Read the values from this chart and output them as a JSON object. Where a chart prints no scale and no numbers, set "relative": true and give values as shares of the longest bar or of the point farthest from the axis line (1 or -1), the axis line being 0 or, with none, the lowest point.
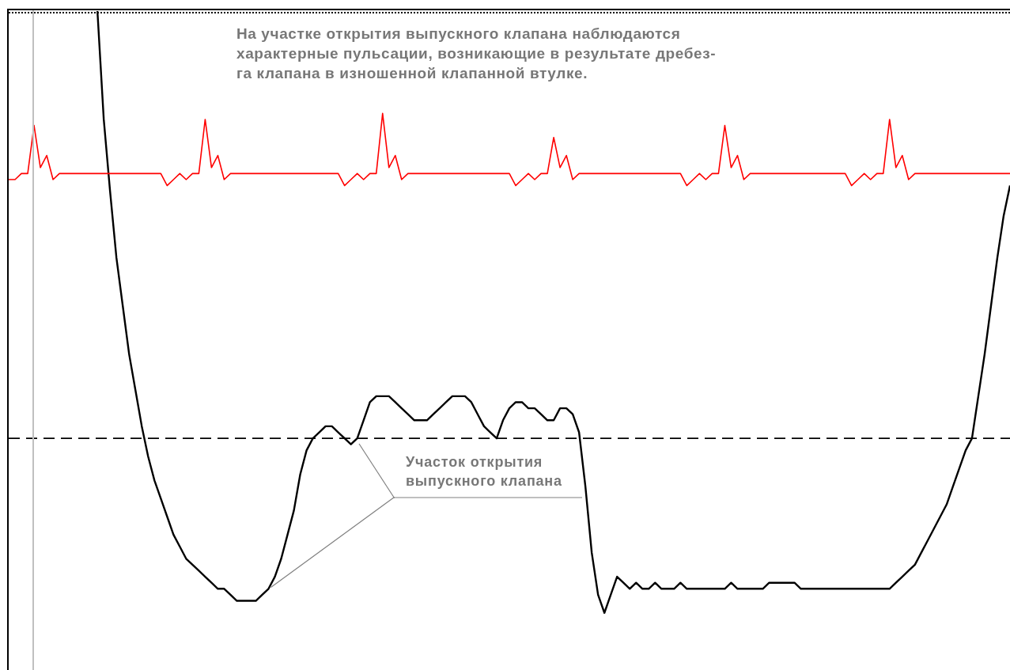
{
  "chart_data": {
    "type": "line",
    "relative": true,
    "tick_labels": false,
    "annotations": [
      "На участке открытия выпускного клапана наблюдаются\nхарактерные пульсации, возникающие в результате дребез-\nга клапана в изношенной клапанной втулке.",
      "Участок открытия\nвыпускного клапана"
    ],
    "ref_lines": [
      {
        "axis": "y",
        "value": 0.29,
        "color": "#000000",
        "line_style": "dashed"
      }
    ],
    "categories": [
      null,
      null,
      null,
      null,
      null,
      null,
      null,
      null,
      null,
      null,
      null,
      null,
      null,
      null,
      null,
      null,
      null,
      null,
      null,
      null,
      null,
      null,
      null,
      null,
      null,
      null,
      null,
      null,
      null,
      null,
      null,
      null,
      null,
      null,
      null,
      null,
      null,
      null,
      null,
      null,
      null,
      null,
      null,
      null,
      null,
      null,
      null,
      null,
      null,
      null,
      null,
      null,
      null,
      null,
      null,
      null,
      null,
      null,
      null,
      null,
      null,
      null,
      null,
      null,
      null,
      null,
      null,
      null,
      null,
      null,
      null,
      null,
      null,
      null,
      null,
      null,
      null,
      null,
      null,
      null,
      null,
      null,
      null,
      null,
      null,
      null,
      null,
      null,
      null,
      null,
      null,
      null,
      null,
      null,
      null,
      null,
      null,
      null,
      null,
      null,
      null,
      null,
      null,
      null,
      null,
      null,
      null,
      null,
      null,
      null,
      null,
      null,
      null,
      null,
      null,
      null,
      null,
      null,
      null,
      null,
      null,
      null,
      null,
      null,
      null,
      null,
      null,
      null,
      null,
      null,
      null,
      null,
      null,
      null,
      null,
      null,
      null,
      null,
      null,
      null,
      null,
      null,
      null,
      null,
      null,
      null,
      null,
      null,
      null,
      null,
      null,
      null,
      null,
      null,
      null,
      null,
      null,
      null,
      null
    ],
    "series": [
      {
        "color": "#ff0000",
        "values": [
          0.72,
          0.72,
          0.73,
          0.73,
          0.81,
          0.74,
          0.76,
          0.72,
          0.73,
          0.73,
          0.73,
          0.73,
          0.73,
          0.73,
          0.73,
          0.73,
          0.73,
          0.73,
          0.73,
          0.73,
          0.73,
          0.73,
          0.73,
          0.73,
          0.73,
          0.71,
          0.72,
          0.73,
          0.72,
          0.73,
          0.73,
          0.82,
          0.74,
          0.76,
          0.72,
          0.73,
          0.73,
          0.73,
          0.73,
          0.73,
          0.73,
          0.73,
          0.73,
          0.73,
          0.73,
          0.73,
          0.73,
          0.73,
          0.73,
          0.73,
          0.73,
          0.73,
          0.73,
          0.71,
          0.72,
          0.73,
          0.72,
          0.73,
          0.73,
          0.83,
          0.74,
          0.76,
          0.72,
          0.73,
          0.73,
          0.73,
          0.73,
          0.73,
          0.73,
          0.73,
          0.73,
          0.73,
          0.73,
          0.73,
          0.73,
          0.73,
          0.73,
          0.73,
          0.73,
          0.73,
          0.71,
          0.72,
          0.73,
          0.72,
          0.73,
          0.73,
          0.79,
          0.74,
          0.76,
          0.72,
          0.73,
          0.73,
          0.73,
          0.73,
          0.73,
          0.73,
          0.73,
          0.73,
          0.73,
          0.73,
          0.73,
          0.73,
          0.73,
          0.73,
          0.73,
          0.73,
          0.73,
          0.71,
          0.72,
          0.73,
          0.72,
          0.73,
          0.73,
          0.81,
          0.74,
          0.76,
          0.72,
          0.73,
          0.73,
          0.73,
          0.73,
          0.73,
          0.73,
          0.73,
          0.73,
          0.73,
          0.73,
          0.73,
          0.73,
          0.73,
          0.73,
          0.73,
          0.73,
          0.71,
          0.72,
          0.73,
          0.72,
          0.73,
          0.73,
          0.82,
          0.74,
          0.76,
          0.72,
          0.73,
          0.73,
          0.73,
          0.73,
          0.73,
          0.73,
          0.73,
          0.73,
          0.73,
          0.73,
          0.73,
          0.73,
          0.73,
          0.73,
          0.73,
          0.73
        ]
      },
      {
        "color": "#000000",
        "values": [
          null,
          null,
          null,
          null,
          null,
          null,
          null,
          null,
          null,
          null,
          null,
          null,
          null,
          null,
          1.0,
          0.82,
          0.7,
          0.59,
          0.51,
          0.43,
          0.37,
          0.31,
          0.26,
          0.22,
          0.19,
          0.16,
          0.13,
          0.11,
          0.09,
          0.08,
          0.07,
          0.06,
          0.05,
          0.04,
          0.04,
          0.03,
          0.02,
          0.02,
          0.02,
          0.02,
          0.03,
          0.04,
          0.06,
          0.09,
          0.13,
          0.17,
          0.23,
          0.27,
          0.29,
          0.3,
          0.31,
          0.31,
          0.3,
          0.29,
          0.28,
          0.29,
          0.32,
          0.35,
          0.36,
          0.36,
          0.36,
          0.35,
          0.34,
          0.33,
          0.32,
          0.32,
          0.32,
          0.33,
          0.34,
          0.35,
          0.36,
          0.36,
          0.36,
          0.35,
          0.33,
          0.31,
          0.3,
          0.29,
          0.32,
          0.34,
          0.35,
          0.35,
          0.34,
          0.34,
          0.33,
          0.32,
          0.32,
          0.34,
          0.34,
          0.33,
          0.3,
          0.21,
          0.1,
          0.03,
          0,
          0.03,
          0.06,
          0.05,
          0.04,
          0.05,
          0.04,
          0.04,
          0.05,
          0.04,
          0.04,
          0.04,
          0.05,
          0.04,
          0.04,
          0.04,
          0.04,
          0.04,
          0.04,
          0.04,
          0.05,
          0.04,
          0.04,
          0.04,
          0.04,
          0.04,
          0.05,
          0.05,
          0.05,
          0.05,
          0.05,
          0.04,
          0.04,
          0.04,
          0.04,
          0.04,
          0.04,
          0.04,
          0.04,
          0.04,
          0.04,
          0.04,
          0.04,
          0.04,
          0.04,
          0.04,
          0.05,
          0.06,
          0.07,
          0.08,
          0.1,
          0.12,
          0.14,
          0.16,
          0.18,
          0.21,
          0.24,
          0.27,
          0.29,
          0.36,
          0.43,
          0.51,
          0.59,
          0.66,
          0.71
        ]
      }
    ]
  }
}
